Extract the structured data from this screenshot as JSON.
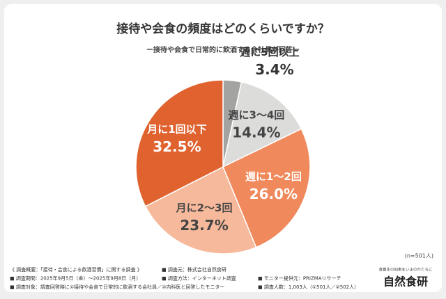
{
  "chart_data": {
    "type": "pie",
    "title": "接待や会食の頻度はどのくらいですか？",
    "subtitle": "ー接待や会食で日常的に飲酒する会社員が回答ー",
    "categories": [
      "週に5回以上",
      "週に3～4回",
      "週に1～2回",
      "月に2～3回",
      "月に1回以下"
    ],
    "values": [
      3.4,
      14.4,
      26.0,
      23.7,
      32.5
    ],
    "value_labels": [
      "3.4%",
      "14.4%",
      "26.0%",
      "23.7%",
      "32.5%"
    ],
    "colors": [
      "#a3a3a1",
      "#dcdcdb",
      "#f0895b",
      "#f6b99b",
      "#e0622f"
    ],
    "note": "(n=501人)"
  },
  "notes": [
    [
      "《 調査概要：「接待・会食による飲酒習慣」に関する調査 》",
      "■ 調査元：株式会社自然食研"
    ],
    [
      "■ 調査期間：2025年9月5日（金）～2025年9月8日（月）",
      "■ 調査方法：インターネット調査",
      "■ モニター提供元：PRIZMAリサーチ"
    ],
    [
      "■ 調査対象：調査回答時に①接待や会食で日常的に飲酒する会社員／②内科医と回答したモニター",
      "■ 調査人数：1,003人（①501人／②502人）"
    ]
  ],
  "logo": {
    "tagline": "食養生の知恵をいまのかたちに",
    "name": "自然食研"
  }
}
